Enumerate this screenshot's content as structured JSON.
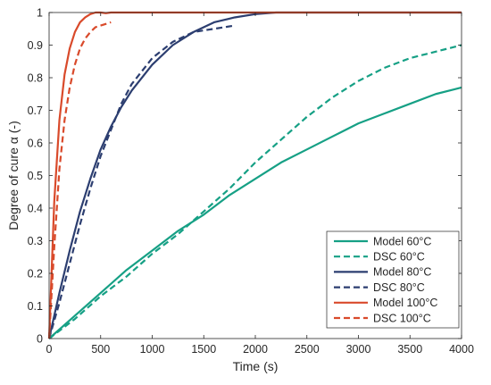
{
  "chart_data": {
    "type": "line",
    "title": "",
    "xlabel": "Time (s)",
    "ylabel": "Degree of cure α (-)",
    "xlim": [
      0,
      4000
    ],
    "ylim": [
      0,
      1
    ],
    "x_ticks": [
      0,
      500,
      1000,
      1500,
      2000,
      2500,
      3000,
      3500,
      4000
    ],
    "y_ticks": [
      0,
      0.1,
      0.2,
      0.3,
      0.4,
      0.5,
      0.6,
      0.7,
      0.8,
      0.9,
      1
    ],
    "grid": false,
    "legend_position": "bottom-right",
    "series": [
      {
        "name": "Model 60°C",
        "style": "solid",
        "color": "#16a085",
        "x": [
          0,
          250,
          500,
          750,
          1000,
          1250,
          1500,
          1750,
          2000,
          2250,
          2500,
          2750,
          3000,
          3250,
          3500,
          3750,
          4000
        ],
        "y": [
          0,
          0.07,
          0.14,
          0.21,
          0.27,
          0.33,
          0.38,
          0.44,
          0.49,
          0.54,
          0.58,
          0.62,
          0.66,
          0.69,
          0.72,
          0.75,
          0.77
        ]
      },
      {
        "name": "DSC 60°C",
        "style": "dashed",
        "color": "#16a085",
        "x": [
          0,
          250,
          500,
          750,
          1000,
          1250,
          1500,
          1750,
          2000,
          2250,
          2500,
          2750,
          3000,
          3250,
          3500,
          3750,
          4000
        ],
        "y": [
          0,
          0.06,
          0.13,
          0.19,
          0.26,
          0.32,
          0.39,
          0.46,
          0.54,
          0.61,
          0.68,
          0.74,
          0.79,
          0.83,
          0.86,
          0.88,
          0.9
        ]
      },
      {
        "name": "Model 80°C",
        "style": "solid",
        "color": "#2c3e70",
        "x": [
          0,
          100,
          200,
          300,
          400,
          500,
          600,
          700,
          800,
          1000,
          1200,
          1400,
          1600,
          1800,
          2000,
          2200,
          2500,
          3000,
          4000
        ],
        "y": [
          0,
          0.14,
          0.27,
          0.39,
          0.49,
          0.58,
          0.65,
          0.71,
          0.76,
          0.84,
          0.9,
          0.94,
          0.97,
          0.985,
          0.995,
          1,
          1,
          1,
          1
        ]
      },
      {
        "name": "DSC 80°C",
        "style": "dashed",
        "color": "#2c3e70",
        "x": [
          0,
          100,
          200,
          300,
          400,
          500,
          600,
          700,
          800,
          1000,
          1200,
          1400,
          1600,
          1800
        ],
        "y": [
          0,
          0.11,
          0.23,
          0.35,
          0.46,
          0.56,
          0.64,
          0.72,
          0.78,
          0.86,
          0.91,
          0.94,
          0.95,
          0.96
        ]
      },
      {
        "name": "Model 100°C",
        "style": "solid",
        "color": "#d94a2b",
        "x": [
          0,
          50,
          100,
          150,
          200,
          250,
          300,
          350,
          400,
          450,
          500,
          550,
          600,
          700,
          1000,
          2000,
          3000,
          4000
        ],
        "y": [
          0,
          0.42,
          0.67,
          0.81,
          0.89,
          0.94,
          0.97,
          0.985,
          0.995,
          1,
          1,
          0.998,
          1,
          1,
          1,
          1,
          1,
          1
        ]
      },
      {
        "name": "DSC 100°C",
        "style": "dashed",
        "color": "#d94a2b",
        "x": [
          0,
          50,
          100,
          150,
          200,
          250,
          300,
          350,
          400,
          450,
          500,
          550,
          600
        ],
        "y": [
          0,
          0.28,
          0.52,
          0.67,
          0.77,
          0.84,
          0.89,
          0.92,
          0.94,
          0.955,
          0.96,
          0.965,
          0.97
        ]
      }
    ]
  }
}
